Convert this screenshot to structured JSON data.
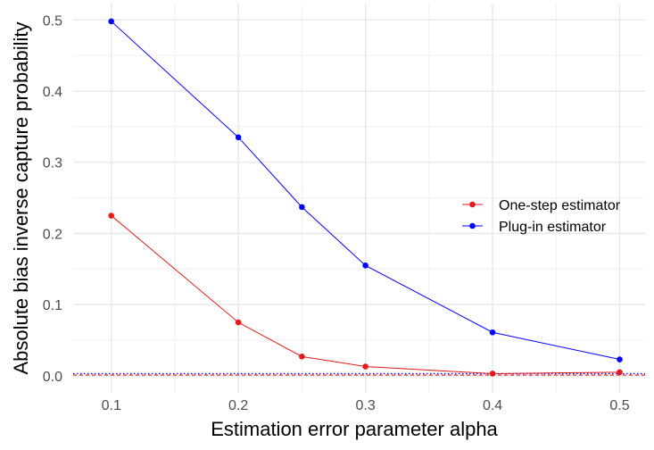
{
  "chart_data": {
    "type": "line",
    "title": "",
    "xlabel": "Estimation error parameter alpha",
    "ylabel": "Absolute bias inverse capture probability",
    "x": [
      0.1,
      0.2,
      0.25,
      0.3,
      0.4,
      0.5
    ],
    "x_ticks": [
      "0.1",
      "0.2",
      "0.3",
      "0.4",
      "0.5"
    ],
    "y_ticks": [
      "0.0",
      "0.1",
      "0.2",
      "0.3",
      "0.4",
      "0.5"
    ],
    "xlim": [
      0.07,
      0.52
    ],
    "ylim": [
      -0.024,
      0.523
    ],
    "grid": true,
    "legend_position": "right",
    "series": [
      {
        "name": "One-step estimator",
        "color": "#e41a1c",
        "values": [
          0.225,
          0.075,
          0.027,
          0.013,
          0.003,
          0.005
        ]
      },
      {
        "name": "Plug-in estimator",
        "color": "#0000ff",
        "values": [
          0.498,
          0.335,
          0.237,
          0.155,
          0.061,
          0.023
        ]
      }
    ],
    "reference_lines": [
      {
        "y": 0.003,
        "color": "#0000ff",
        "style": "dotted"
      },
      {
        "y": 0.001,
        "color": "#e41a1c",
        "style": "dashed"
      }
    ]
  }
}
